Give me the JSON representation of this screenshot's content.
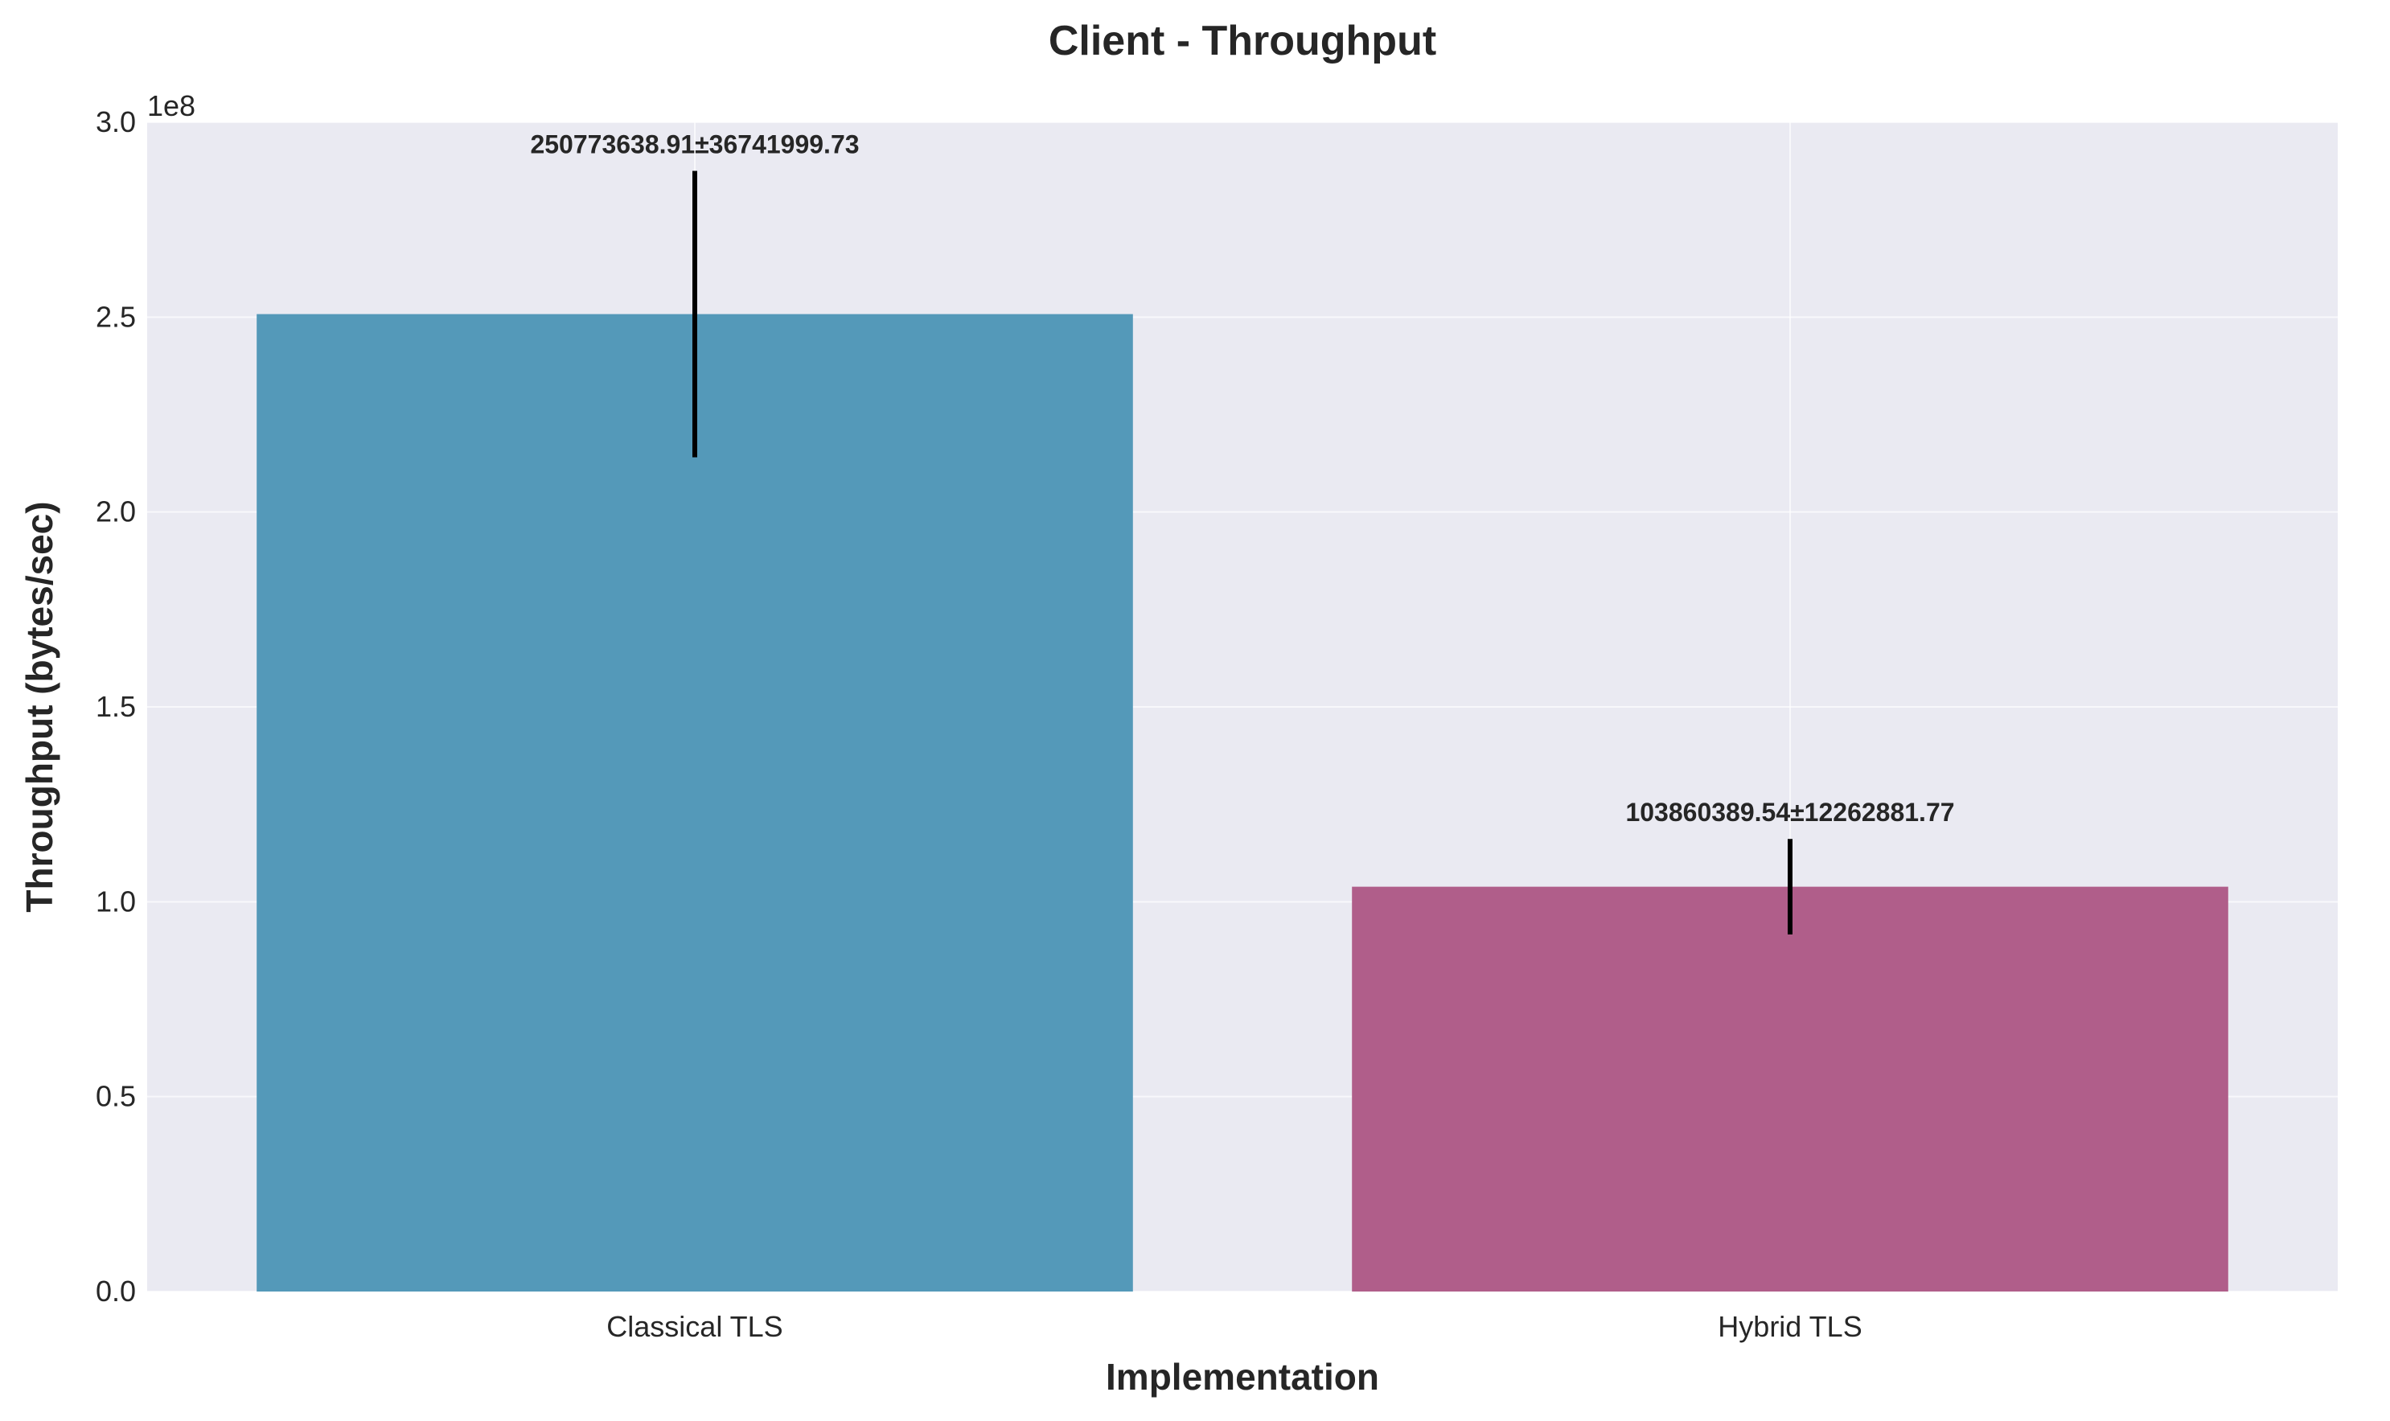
{
  "chart_data": {
    "type": "bar",
    "title": "Client - Throughput",
    "xlabel": "Implementation",
    "ylabel": "Throughput (bytes/sec)",
    "y_offset_label": "1e8",
    "ylim": [
      0,
      300000000
    ],
    "y_ticks": [
      0,
      50000000,
      100000000,
      150000000,
      200000000,
      250000000,
      300000000
    ],
    "y_tick_labels": [
      "0.0",
      "0.5",
      "1.0",
      "1.5",
      "2.0",
      "2.5",
      "3.0"
    ],
    "categories": [
      "Classical TLS",
      "Hybrid TLS"
    ],
    "values": [
      250773638.91,
      103860389.54
    ],
    "errors": [
      36741999.73,
      12262881.77
    ],
    "data_labels": [
      "250773638.91±36741999.73",
      "103860389.54±12262881.77"
    ],
    "colors": [
      "#5499b9",
      "#b05e8a"
    ],
    "background_color": "#eaeaf2",
    "grid": true,
    "legend": "none"
  }
}
